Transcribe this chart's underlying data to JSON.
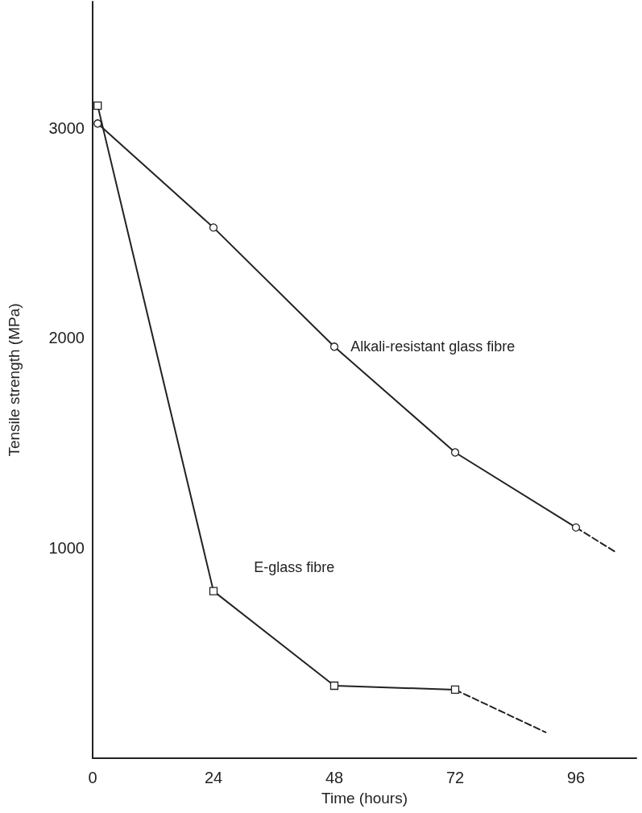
{
  "chart_data": {
    "type": "line",
    "xlabel": "Time (hours)",
    "ylabel": "Tensile strength (MPa)",
    "xlim": [
      0,
      108
    ],
    "xticks": [
      0,
      24,
      48,
      72,
      96
    ],
    "ylim": [
      0,
      3600
    ],
    "yticks": [
      1000,
      2000,
      3000
    ],
    "grid": false,
    "series": [
      {
        "name": "Alkali-resistant glass fibre",
        "color": "#222222",
        "marker": "circle",
        "line_style": "solid",
        "x": [
          1,
          24,
          48,
          72,
          96
        ],
        "values": [
          3020,
          2525,
          1958,
          1455,
          1098
        ]
      },
      {
        "color": "#222222",
        "marker": "none",
        "line_style": "dashed",
        "x": [
          96,
          104
        ],
        "values": [
          1098,
          979
        ]
      },
      {
        "name": "E-glass fibre",
        "color": "#222222",
        "marker": "square",
        "line_style": "solid",
        "x": [
          1,
          24,
          48,
          72
        ],
        "values": [
          3105,
          795,
          345,
          326
        ]
      },
      {
        "color": "#222222",
        "marker": "none",
        "line_style": "dashed",
        "x": [
          72,
          90
        ],
        "values": [
          326,
          123
        ]
      }
    ]
  }
}
